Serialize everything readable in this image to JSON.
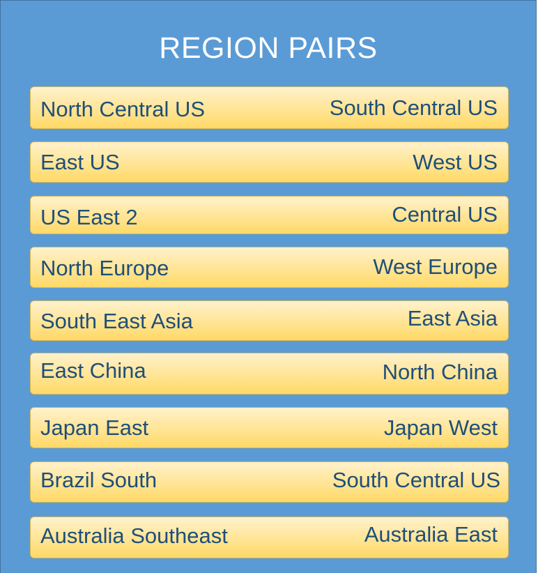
{
  "title": "REGION PAIRS",
  "pairs": [
    {
      "primary": "North Central US",
      "secondary": "South Central US"
    },
    {
      "primary": "East US",
      "secondary": "West US"
    },
    {
      "primary": "US East 2",
      "secondary": "Central US"
    },
    {
      "primary": "North Europe",
      "secondary": "West Europe"
    },
    {
      "primary": "South East Asia",
      "secondary": "East Asia"
    },
    {
      "primary": "East China",
      "secondary": "North China"
    },
    {
      "primary": "Japan East",
      "secondary": "Japan West"
    },
    {
      "primary": "Brazil South",
      "secondary": "South Central US"
    },
    {
      "primary": "Australia Southeast",
      "secondary": "Australia East"
    }
  ],
  "colors": {
    "panel_background": "#5b9bd5",
    "pair_fill_top": "#fff2cc",
    "pair_fill_bottom": "#ffd966",
    "pair_border": "#d6b656",
    "pair_text": "#1f4e79",
    "title_text": "#ffffff"
  }
}
